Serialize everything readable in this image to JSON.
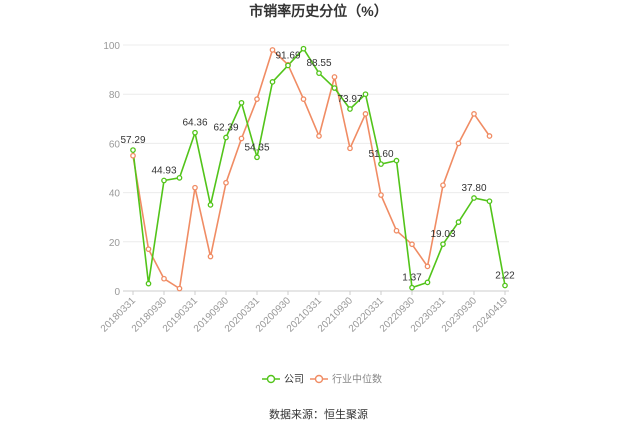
{
  "chart_data": {
    "type": "line",
    "title": "市销率历史分位（%）",
    "ylim": [
      0,
      100
    ],
    "yticks": [
      0,
      20,
      40,
      60,
      80,
      100
    ],
    "x_tick_labels": [
      "20180331",
      "20180930",
      "20190331",
      "20190930",
      "20200331",
      "20200930",
      "20210331",
      "20210930",
      "20220331",
      "20220930",
      "20230331",
      "20230930",
      "20240419"
    ],
    "grid": {
      "horizontal": true,
      "vertical": false
    },
    "legend_position": "bottom-center",
    "series": [
      {
        "name": "公司",
        "color": "#52c41a",
        "values": [
          57.29,
          3,
          44.93,
          46,
          64.36,
          35,
          62.39,
          76.5,
          54.35,
          85,
          91.69,
          98.5,
          88.55,
          82.5,
          73.97,
          80,
          51.6,
          53,
          1.37,
          3.5,
          19.03,
          28,
          37.8,
          36.5,
          2.22
        ],
        "labels": {
          "0": "57.29",
          "2": "44.93",
          "4": "64.36",
          "6": "62.39",
          "8": "54.35",
          "10": "91.69",
          "12": "88.55",
          "14": "73.97",
          "16": "51.60",
          "18": "1.37",
          "20": "19.03",
          "22": "37.80",
          "24": "2.22"
        }
      },
      {
        "name": "行业中位数",
        "color": "#f08c64",
        "values": [
          55,
          17,
          5,
          1,
          42,
          14,
          44,
          62,
          78,
          98,
          92,
          78,
          63,
          87,
          58,
          72,
          39,
          24.5,
          19,
          10,
          43,
          60,
          72,
          63
        ]
      }
    ]
  },
  "source": "数据来源：恒生聚源"
}
